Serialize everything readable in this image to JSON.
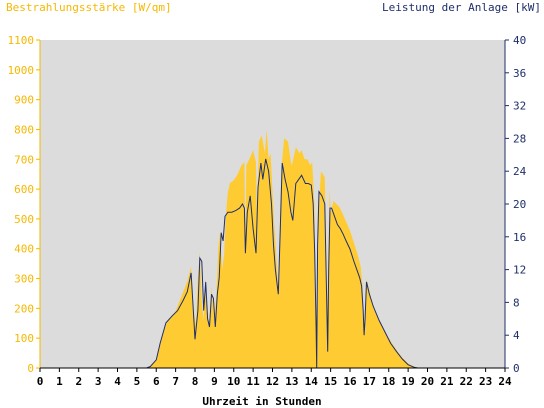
{
  "chart_data": {
    "type": "area",
    "title_left": "Bestrahlungsstärke [W/qm]",
    "title_right": "Leistung der Anlage [kW]",
    "xlabel": "Uhrzeit in Stunden",
    "xlim": [
      0,
      24
    ],
    "x_ticks": [
      "0",
      "1",
      "2",
      "3",
      "4",
      "5",
      "6",
      "7",
      "8",
      "9",
      "10",
      "11",
      "12",
      "13",
      "14",
      "15",
      "16",
      "17",
      "18",
      "19",
      "20",
      "21",
      "22",
      "23",
      "24"
    ],
    "y_left": {
      "range": [
        0,
        1100
      ],
      "ticks": [
        "0",
        "100",
        "200",
        "300",
        "400",
        "500",
        "600",
        "700",
        "800",
        "900",
        "1000",
        "1100"
      ]
    },
    "y_right": {
      "range": [
        0,
        40
      ],
      "ticks": [
        "0",
        "4",
        "8",
        "12",
        "16",
        "20",
        "24",
        "28",
        "32",
        "36",
        "40"
      ]
    },
    "grid": false,
    "colors": {
      "plot_background": "#dcdcdc",
      "irradiance": "#ffcb33",
      "power": "#1f2f6b",
      "left_axis": "#f6b800",
      "right_axis": "#1f2f6b"
    },
    "series": [
      {
        "name": "Bestrahlungsstärke",
        "axis": "left",
        "style": "area",
        "points": [
          [
            0,
            0
          ],
          [
            5.5,
            0
          ],
          [
            5.7,
            8
          ],
          [
            6.0,
            30
          ],
          [
            6.3,
            110
          ],
          [
            6.6,
            160
          ],
          [
            7.0,
            190
          ],
          [
            7.3,
            240
          ],
          [
            7.6,
            290
          ],
          [
            7.8,
            340
          ],
          [
            7.9,
            200
          ],
          [
            8.05,
            140
          ],
          [
            8.15,
            300
          ],
          [
            8.25,
            390
          ],
          [
            8.35,
            220
          ],
          [
            8.45,
            160
          ],
          [
            8.55,
            300
          ],
          [
            8.65,
            170
          ],
          [
            8.75,
            150
          ],
          [
            8.85,
            270
          ],
          [
            9.0,
            160
          ],
          [
            9.1,
            240
          ],
          [
            9.2,
            400
          ],
          [
            9.3,
            460
          ],
          [
            9.4,
            330
          ],
          [
            9.5,
            380
          ],
          [
            9.6,
            520
          ],
          [
            9.7,
            590
          ],
          [
            9.8,
            620
          ],
          [
            10.0,
            630
          ],
          [
            10.2,
            650
          ],
          [
            10.4,
            680
          ],
          [
            10.55,
            690
          ],
          [
            10.6,
            400
          ],
          [
            10.65,
            680
          ],
          [
            10.8,
            700
          ],
          [
            11.0,
            730
          ],
          [
            11.15,
            690
          ],
          [
            11.2,
            500
          ],
          [
            11.3,
            760
          ],
          [
            11.45,
            780
          ],
          [
            11.6,
            720
          ],
          [
            11.7,
            800
          ],
          [
            11.8,
            700
          ],
          [
            11.9,
            720
          ],
          [
            12.05,
            520
          ],
          [
            12.2,
            370
          ],
          [
            12.3,
            250
          ],
          [
            12.45,
            660
          ],
          [
            12.6,
            770
          ],
          [
            12.8,
            760
          ],
          [
            12.95,
            690
          ],
          [
            13.0,
            680
          ],
          [
            13.2,
            740
          ],
          [
            13.4,
            720
          ],
          [
            13.5,
            730
          ],
          [
            13.65,
            700
          ],
          [
            13.8,
            700
          ],
          [
            13.95,
            680
          ],
          [
            14.05,
            690
          ],
          [
            14.15,
            560
          ],
          [
            14.2,
            380
          ],
          [
            14.25,
            150
          ],
          [
            14.3,
            30
          ],
          [
            14.38,
            520
          ],
          [
            14.5,
            660
          ],
          [
            14.7,
            640
          ],
          [
            14.78,
            300
          ],
          [
            14.82,
            80
          ],
          [
            14.88,
            400
          ],
          [
            14.95,
            600
          ],
          [
            15.0,
            520
          ],
          [
            15.15,
            560
          ],
          [
            15.3,
            550
          ],
          [
            15.45,
            540
          ],
          [
            15.6,
            520
          ],
          [
            15.8,
            490
          ],
          [
            16.0,
            460
          ],
          [
            16.2,
            420
          ],
          [
            16.4,
            380
          ],
          [
            16.55,
            340
          ],
          [
            16.65,
            270
          ],
          [
            16.72,
            110
          ],
          [
            16.78,
            120
          ],
          [
            16.85,
            300
          ],
          [
            17.0,
            260
          ],
          [
            17.2,
            200
          ],
          [
            17.5,
            160
          ],
          [
            17.8,
            120
          ],
          [
            18.1,
            90
          ],
          [
            18.4,
            60
          ],
          [
            18.7,
            35
          ],
          [
            19.0,
            15
          ],
          [
            19.3,
            5
          ],
          [
            19.6,
            0
          ],
          [
            24,
            0
          ]
        ]
      },
      {
        "name": "Leistung der Anlage",
        "axis": "right",
        "style": "line",
        "points": [
          [
            0,
            0
          ],
          [
            5.5,
            0
          ],
          [
            5.7,
            0.2
          ],
          [
            6.0,
            1.0
          ],
          [
            6.2,
            3.0
          ],
          [
            6.5,
            5.5
          ],
          [
            6.8,
            6.3
          ],
          [
            7.1,
            7.0
          ],
          [
            7.4,
            8.3
          ],
          [
            7.6,
            9.3
          ],
          [
            7.8,
            11.6
          ],
          [
            7.9,
            7.5
          ],
          [
            8.0,
            3.5
          ],
          [
            8.15,
            7.0
          ],
          [
            8.25,
            13.4
          ],
          [
            8.35,
            13.0
          ],
          [
            8.45,
            7.0
          ],
          [
            8.55,
            10.5
          ],
          [
            8.65,
            6.0
          ],
          [
            8.75,
            5.0
          ],
          [
            8.85,
            9.0
          ],
          [
            8.95,
            8.5
          ],
          [
            9.05,
            5.0
          ],
          [
            9.15,
            9.0
          ],
          [
            9.25,
            11.0
          ],
          [
            9.35,
            16.5
          ],
          [
            9.45,
            15.5
          ],
          [
            9.55,
            18.5
          ],
          [
            9.7,
            19.0
          ],
          [
            9.9,
            19.0
          ],
          [
            10.1,
            19.2
          ],
          [
            10.3,
            19.5
          ],
          [
            10.45,
            20.0
          ],
          [
            10.55,
            19.5
          ],
          [
            10.6,
            14.0
          ],
          [
            10.7,
            19.0
          ],
          [
            10.85,
            21.0
          ],
          [
            11.0,
            17.0
          ],
          [
            11.15,
            14.0
          ],
          [
            11.25,
            22.0
          ],
          [
            11.4,
            25.0
          ],
          [
            11.5,
            23.0
          ],
          [
            11.65,
            25.5
          ],
          [
            11.8,
            24.0
          ],
          [
            11.95,
            20.0
          ],
          [
            12.05,
            15.0
          ],
          [
            12.15,
            12.0
          ],
          [
            12.3,
            9.0
          ],
          [
            12.4,
            17.0
          ],
          [
            12.5,
            25.0
          ],
          [
            12.65,
            23.0
          ],
          [
            12.8,
            21.5
          ],
          [
            12.95,
            19.0
          ],
          [
            13.05,
            18.0
          ],
          [
            13.2,
            22.5
          ],
          [
            13.35,
            23.0
          ],
          [
            13.5,
            23.5
          ],
          [
            13.7,
            22.5
          ],
          [
            13.85,
            22.5
          ],
          [
            14.0,
            22.3
          ],
          [
            14.1,
            20.0
          ],
          [
            14.18,
            14.0
          ],
          [
            14.25,
            5.0
          ],
          [
            14.28,
            0
          ],
          [
            14.33,
            15.0
          ],
          [
            14.4,
            21.5
          ],
          [
            14.55,
            21.0
          ],
          [
            14.7,
            20.0
          ],
          [
            14.78,
            10.0
          ],
          [
            14.85,
            2.0
          ],
          [
            14.9,
            12.0
          ],
          [
            14.97,
            19.5
          ],
          [
            15.05,
            19.5
          ],
          [
            15.2,
            18.5
          ],
          [
            15.35,
            17.5
          ],
          [
            15.5,
            17.0
          ],
          [
            15.65,
            16.3
          ],
          [
            15.8,
            15.5
          ],
          [
            16.0,
            14.5
          ],
          [
            16.2,
            13.0
          ],
          [
            16.35,
            12.0
          ],
          [
            16.5,
            11.0
          ],
          [
            16.6,
            10.0
          ],
          [
            16.68,
            7.0
          ],
          [
            16.73,
            4.0
          ],
          [
            16.78,
            6.0
          ],
          [
            16.85,
            10.5
          ],
          [
            17.0,
            9.0
          ],
          [
            17.2,
            7.5
          ],
          [
            17.5,
            5.8
          ],
          [
            17.8,
            4.4
          ],
          [
            18.1,
            3.0
          ],
          [
            18.4,
            2.0
          ],
          [
            18.7,
            1.1
          ],
          [
            19.0,
            0.4
          ],
          [
            19.3,
            0.1
          ],
          [
            19.5,
            0
          ],
          [
            24,
            0
          ]
        ]
      }
    ]
  }
}
